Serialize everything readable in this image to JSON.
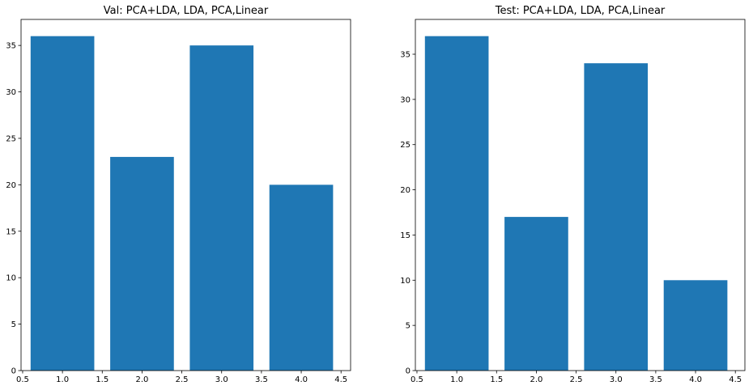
{
  "chart_data": [
    {
      "type": "bar",
      "title": "Val: PCA+LDA, LDA, PCA,Linear",
      "xlabel": "",
      "ylabel": "",
      "x": [
        1.0,
        2.0,
        3.0,
        4.0
      ],
      "values": [
        36,
        23,
        35,
        20
      ],
      "bar_width": 0.8,
      "xlim": [
        0.48,
        4.62
      ],
      "ylim": [
        0,
        37.8
      ],
      "xticks": [
        0.5,
        1.0,
        1.5,
        2.0,
        2.5,
        3.0,
        3.5,
        4.0,
        4.5
      ],
      "xtick_labels": [
        "0.5",
        "1.0",
        "1.5",
        "2.0",
        "2.5",
        "3.0",
        "3.5",
        "4.0",
        "4.5"
      ],
      "yticks": [
        0,
        5,
        10,
        15,
        20,
        25,
        30,
        35
      ],
      "ytick_labels": [
        "0",
        "5",
        "10",
        "15",
        "20",
        "25",
        "30",
        "35"
      ],
      "bar_color": "#1f77b4",
      "grid": false,
      "legend": "none"
    },
    {
      "type": "bar",
      "title": "Test: PCA+LDA, LDA, PCA,Linear",
      "xlabel": "",
      "ylabel": "",
      "x": [
        1.0,
        2.0,
        3.0,
        4.0
      ],
      "values": [
        37,
        17,
        34,
        10
      ],
      "bar_width": 0.8,
      "xlim": [
        0.48,
        4.62
      ],
      "ylim": [
        0,
        38.85
      ],
      "xticks": [
        0.5,
        1.0,
        1.5,
        2.0,
        2.5,
        3.0,
        3.5,
        4.0,
        4.5
      ],
      "xtick_labels": [
        "0.5",
        "1.0",
        "1.5",
        "2.0",
        "2.5",
        "3.0",
        "3.5",
        "4.0",
        "4.5"
      ],
      "yticks": [
        0,
        5,
        10,
        15,
        20,
        25,
        30,
        35
      ],
      "ytick_labels": [
        "0",
        "5",
        "10",
        "15",
        "20",
        "25",
        "30",
        "35"
      ],
      "bar_color": "#1f77b4",
      "grid": false,
      "legend": "none"
    }
  ]
}
